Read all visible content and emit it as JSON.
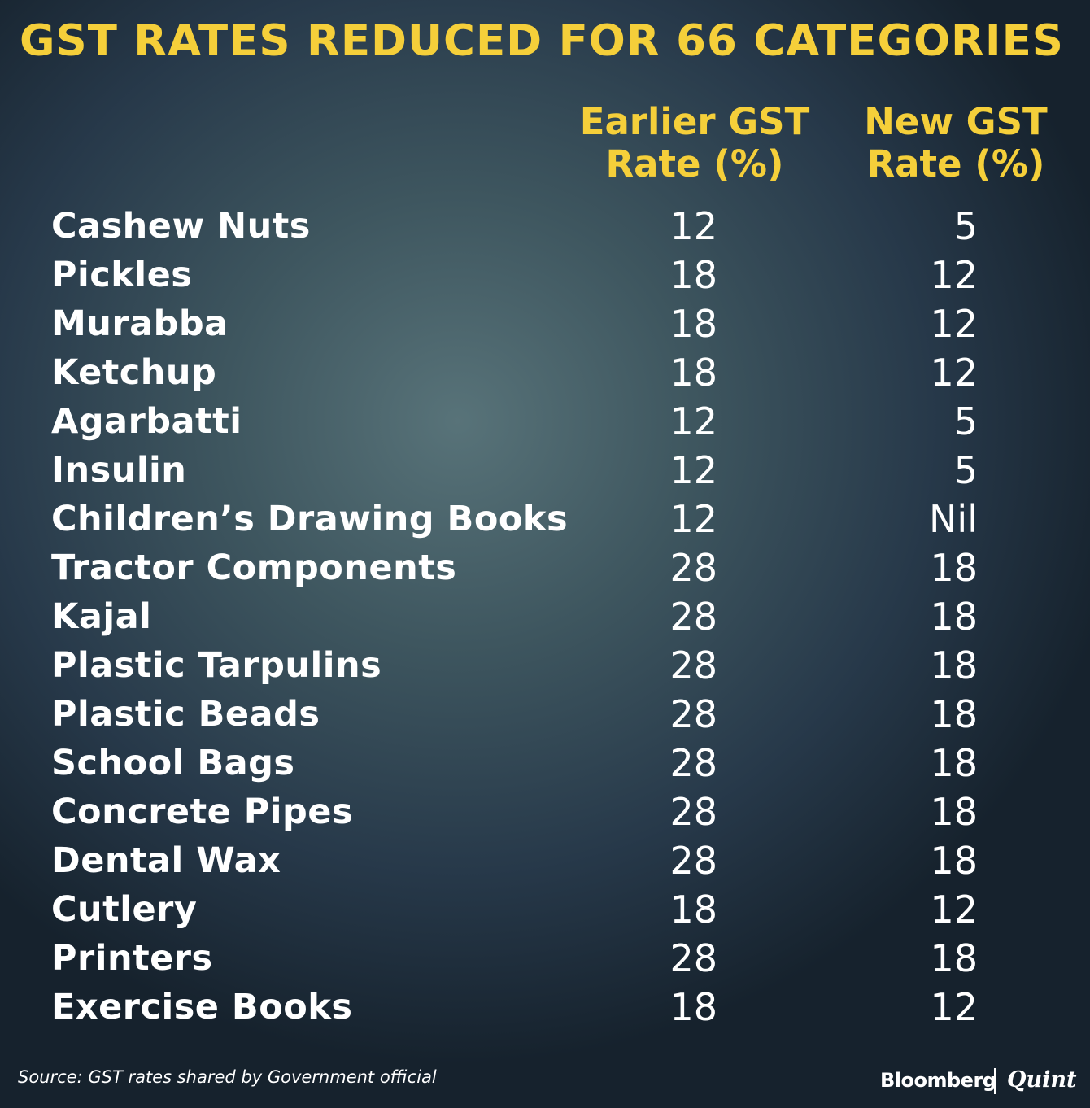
{
  "title": "GST RATES REDUCED FOR 66 CATEGORIES",
  "columns": {
    "earlier_line1": "Earlier GST",
    "earlier_line2": "Rate (%)",
    "new_line1": "New GST",
    "new_line2": "Rate (%)"
  },
  "chart_data": {
    "type": "table",
    "title": "GST RATES REDUCED FOR 66 CATEGORIES",
    "columns": [
      "",
      "Earlier GST Rate (%)",
      "New GST Rate (%)"
    ],
    "rows": [
      {
        "item": "Cashew Nuts",
        "earlier": "12",
        "new": "5"
      },
      {
        "item": "Pickles",
        "earlier": "18",
        "new": "12"
      },
      {
        "item": "Murabba",
        "earlier": "18",
        "new": "12"
      },
      {
        "item": "Ketchup",
        "earlier": "18",
        "new": "12"
      },
      {
        "item": "Agarbatti",
        "earlier": "12",
        "new": "5"
      },
      {
        "item": "Insulin",
        "earlier": "12",
        "new": "5"
      },
      {
        "item": "Children’s Drawing Books",
        "earlier": "12",
        "new": "Nil"
      },
      {
        "item": "Tractor Components",
        "earlier": "28",
        "new": "18"
      },
      {
        "item": "Kajal",
        "earlier": "28",
        "new": "18"
      },
      {
        "item": "Plastic Tarpulins",
        "earlier": "28",
        "new": "18"
      },
      {
        "item": "Plastic Beads",
        "earlier": "28",
        "new": "18"
      },
      {
        "item": "School Bags",
        "earlier": "28",
        "new": "18"
      },
      {
        "item": "Concrete Pipes",
        "earlier": "28",
        "new": "18"
      },
      {
        "item": "Dental Wax",
        "earlier": "28",
        "new": "18"
      },
      {
        "item": "Cutlery",
        "earlier": "18",
        "new": "12"
      },
      {
        "item": "Printers",
        "earlier": "28",
        "new": "18"
      },
      {
        "item": "Exercise Books",
        "earlier": "18",
        "new": "12"
      }
    ]
  },
  "source": "Source: GST rates shared by Government official",
  "brand": {
    "left": "Bloomberg",
    "right": "Quint"
  },
  "colors": {
    "accent": "#f5cf3a",
    "text": "#ffffff",
    "background": "#2f4550"
  }
}
